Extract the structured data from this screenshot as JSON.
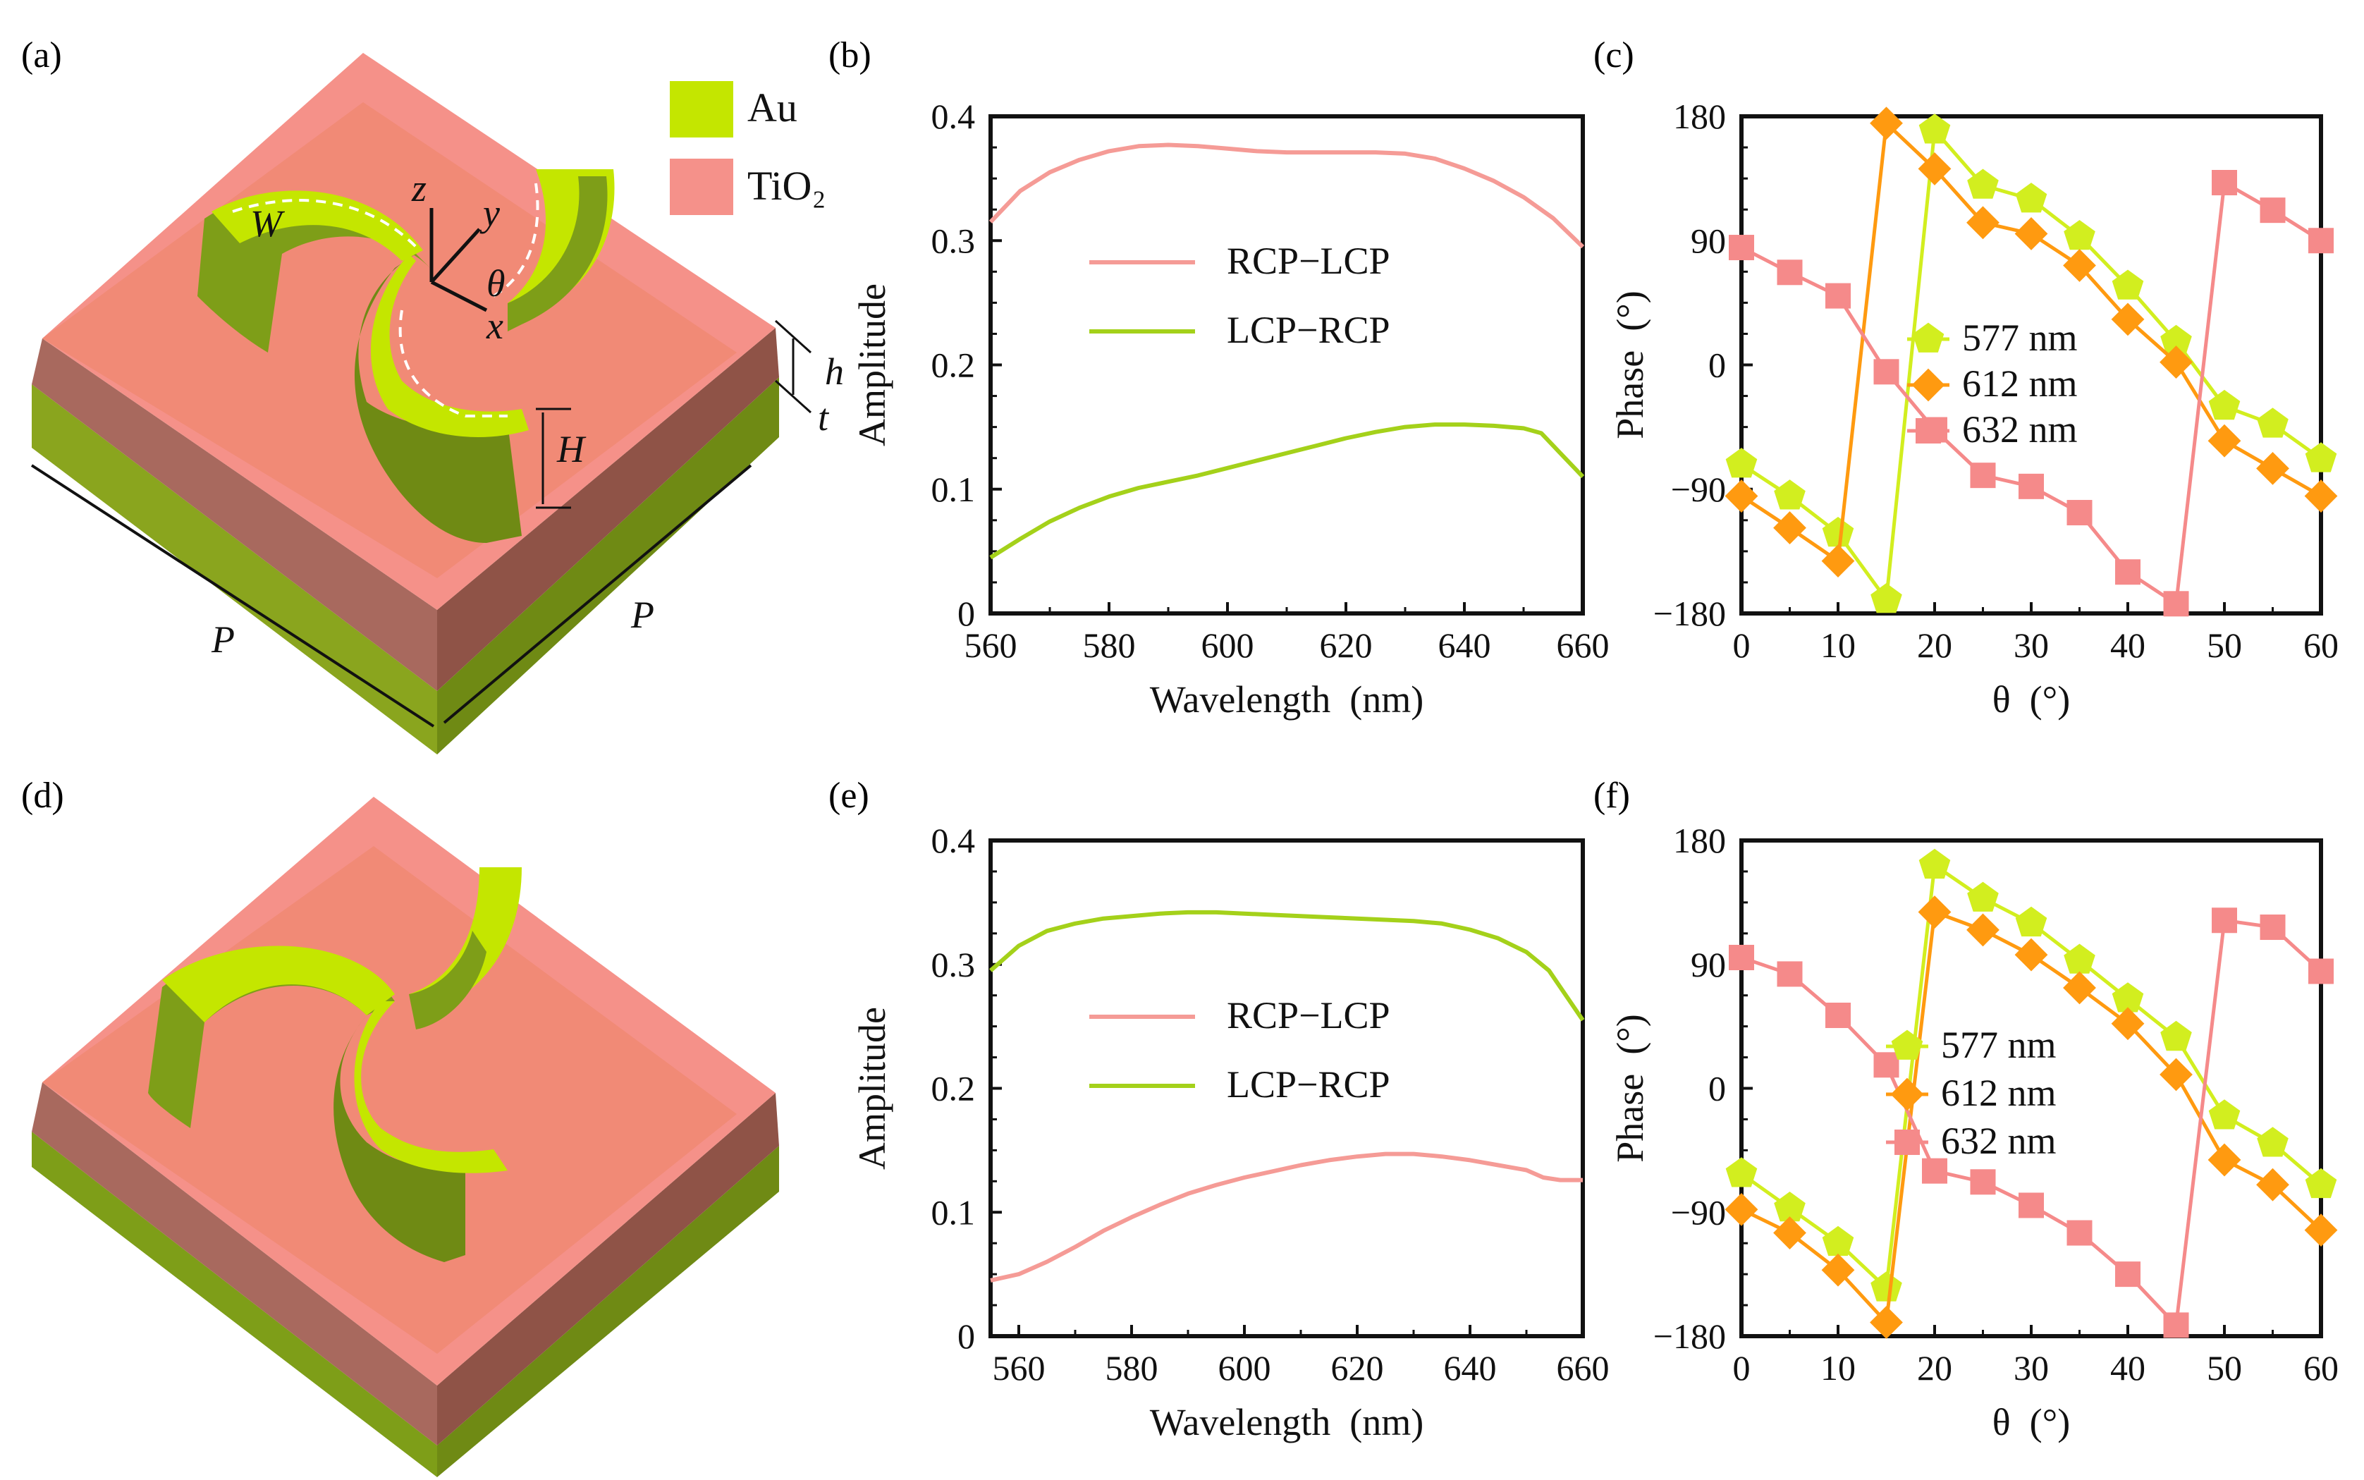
{
  "panel_labels": [
    "(a)",
    "(b)",
    "(c)",
    "(d)",
    "(e)",
    "(f)"
  ],
  "materials": [
    {
      "name": "Au",
      "color": "#c4e600"
    },
    {
      "name": "TiO₂",
      "color": "#f5918a"
    }
  ],
  "dimension_labels": {
    "W": "W",
    "z": "z",
    "y": "y",
    "x": "x",
    "theta": "θ",
    "h": "h",
    "t": "t",
    "H": "H",
    "P": "P"
  },
  "colors": {
    "rcp_lcp": "#f59b96",
    "lcp_rcp": "#a4d11a",
    "s577": "#d2ee1f",
    "s612": "#ff9a10",
    "s632": "#f58a8a"
  },
  "chart_data": [
    {
      "id": "b",
      "type": "line",
      "xlabel": "Wavelength  (nm)",
      "ylabel": "Amplitude",
      "xlim": [
        560,
        660
      ],
      "ylim": [
        0,
        0.4
      ],
      "xticks": [
        560,
        580,
        600,
        620,
        640,
        660
      ],
      "yticks": [
        0,
        0.1,
        0.2,
        0.3,
        0.4
      ],
      "ytick_labels": [
        "0",
        "0.1",
        "0.2",
        "0.3",
        "0.4"
      ],
      "series": [
        {
          "name": "RCP−LCP",
          "color": "#f59b96",
          "x": [
            560,
            565,
            570,
            575,
            580,
            585,
            590,
            595,
            600,
            605,
            610,
            615,
            620,
            625,
            630,
            635,
            640,
            645,
            650,
            655,
            660
          ],
          "y": [
            0.315,
            0.34,
            0.355,
            0.365,
            0.372,
            0.376,
            0.377,
            0.376,
            0.374,
            0.372,
            0.371,
            0.371,
            0.371,
            0.371,
            0.37,
            0.366,
            0.358,
            0.348,
            0.335,
            0.318,
            0.295
          ]
        },
        {
          "name": "LCP−RCP",
          "color": "#a4d11a",
          "x": [
            560,
            565,
            570,
            575,
            580,
            585,
            590,
            595,
            600,
            605,
            610,
            615,
            620,
            625,
            630,
            635,
            640,
            645,
            650,
            653,
            656,
            660
          ],
          "y": [
            0.045,
            0.06,
            0.074,
            0.085,
            0.094,
            0.101,
            0.106,
            0.111,
            0.117,
            0.123,
            0.129,
            0.135,
            0.141,
            0.146,
            0.15,
            0.152,
            0.152,
            0.151,
            0.149,
            0.145,
            0.13,
            0.11
          ]
        }
      ]
    },
    {
      "id": "c",
      "type": "line",
      "xlabel": "θ  (°)",
      "ylabel": "Phase  (°)",
      "xlim": [
        0,
        60
      ],
      "ylim": [
        -180,
        180
      ],
      "xticks": [
        0,
        10,
        20,
        30,
        40,
        50,
        60
      ],
      "yticks": [
        -180,
        -90,
        0,
        90,
        180
      ],
      "ytick_labels": [
        "−180",
        "−90",
        "0",
        "90",
        "180"
      ],
      "series": [
        {
          "name": "577 nm",
          "color": "#d2ee1f",
          "marker": "pentagon",
          "x": [
            0,
            5,
            10,
            15,
            20,
            25,
            30,
            35,
            40,
            45,
            50,
            55,
            60
          ],
          "y": [
            -72,
            -95,
            -122,
            -170,
            170,
            130,
            120,
            93,
            57,
            17,
            -30,
            -43,
            -68
          ]
        },
        {
          "name": "612 nm",
          "color": "#ff9a10",
          "marker": "diamond",
          "x": [
            0,
            5,
            10,
            15,
            20,
            25,
            30,
            35,
            40,
            45,
            50,
            55,
            60
          ],
          "y": [
            -95,
            -118,
            -142,
            175,
            142,
            103,
            95,
            72,
            33,
            2,
            -55,
            -75,
            -95
          ]
        },
        {
          "name": "632 nm",
          "color": "#f58a8a",
          "marker": "square",
          "x": [
            0,
            5,
            10,
            15,
            20,
            25,
            30,
            35,
            40,
            45,
            50,
            55,
            60
          ],
          "y": [
            85,
            67,
            50,
            -5,
            -47,
            -80,
            -88,
            -107,
            -150,
            -173,
            132,
            112,
            90
          ]
        }
      ]
    },
    {
      "id": "e",
      "type": "line",
      "xlabel": "Wavelength  (nm)",
      "ylabel": "Amplitude",
      "xlim": [
        555,
        660
      ],
      "ylim": [
        0,
        0.4
      ],
      "xticks": [
        560,
        580,
        600,
        620,
        640,
        660
      ],
      "yticks": [
        0,
        0.1,
        0.2,
        0.3,
        0.4
      ],
      "ytick_labels": [
        "0",
        "0.1",
        "0.2",
        "0.3",
        "0.4"
      ],
      "series": [
        {
          "name": "RCP−LCP",
          "color": "#f59b96",
          "x": [
            555,
            560,
            565,
            570,
            575,
            580,
            585,
            590,
            595,
            600,
            605,
            610,
            615,
            620,
            625,
            630,
            635,
            640,
            645,
            650,
            653,
            656,
            660
          ],
          "y": [
            0.045,
            0.05,
            0.06,
            0.072,
            0.085,
            0.096,
            0.106,
            0.115,
            0.122,
            0.128,
            0.133,
            0.138,
            0.142,
            0.145,
            0.147,
            0.147,
            0.145,
            0.142,
            0.138,
            0.134,
            0.128,
            0.126,
            0.126
          ]
        },
        {
          "name": "LCP−RCP",
          "color": "#a4d11a",
          "x": [
            555,
            560,
            565,
            570,
            575,
            580,
            585,
            590,
            595,
            600,
            605,
            610,
            615,
            620,
            625,
            630,
            635,
            640,
            645,
            650,
            654,
            657,
            660
          ],
          "y": [
            0.295,
            0.315,
            0.327,
            0.333,
            0.337,
            0.339,
            0.341,
            0.342,
            0.342,
            0.341,
            0.34,
            0.339,
            0.338,
            0.337,
            0.336,
            0.335,
            0.333,
            0.328,
            0.321,
            0.31,
            0.295,
            0.275,
            0.255
          ]
        }
      ]
    },
    {
      "id": "f",
      "type": "line",
      "xlabel": "θ  (°)",
      "ylabel": "Phase  (°)",
      "xlim": [
        0,
        60
      ],
      "ylim": [
        -180,
        180
      ],
      "xticks": [
        0,
        10,
        20,
        30,
        40,
        50,
        60
      ],
      "yticks": [
        -180,
        -90,
        0,
        90,
        180
      ],
      "ytick_labels": [
        "−180",
        "−90",
        "0",
        "90",
        "180"
      ],
      "series": [
        {
          "name": "577 nm",
          "color": "#d2ee1f",
          "marker": "pentagon",
          "x": [
            0,
            5,
            10,
            15,
            20,
            25,
            30,
            35,
            40,
            45,
            50,
            55,
            60
          ],
          "y": [
            -62,
            -87,
            -112,
            -145,
            162,
            138,
            120,
            93,
            65,
            37,
            -20,
            -40,
            -70
          ]
        },
        {
          "name": "612 nm",
          "color": "#ff9a10",
          "marker": "diamond",
          "x": [
            0,
            5,
            10,
            15,
            20,
            25,
            30,
            35,
            40,
            45,
            50,
            55,
            60
          ],
          "y": [
            -88,
            -105,
            -132,
            -170,
            128,
            115,
            97,
            73,
            47,
            10,
            -52,
            -70,
            -103
          ]
        },
        {
          "name": "632 nm",
          "color": "#f58a8a",
          "marker": "square",
          "x": [
            0,
            5,
            10,
            15,
            20,
            25,
            30,
            35,
            40,
            45,
            50,
            55,
            60
          ],
          "y": [
            95,
            83,
            53,
            17,
            -60,
            -68,
            -85,
            -105,
            -135,
            -172,
            122,
            117,
            85
          ]
        }
      ]
    }
  ]
}
